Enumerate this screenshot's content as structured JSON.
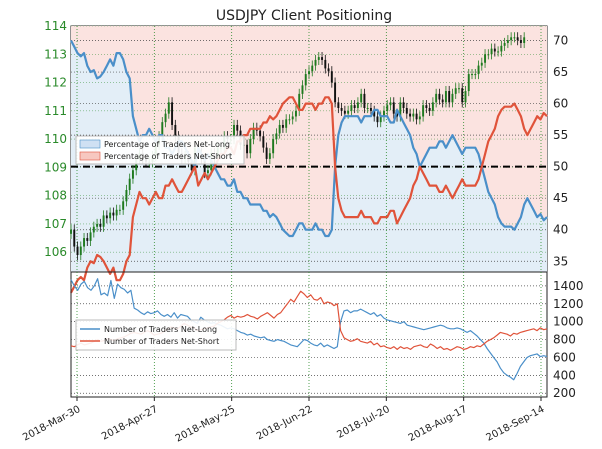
{
  "chart_data": [
    {
      "type": "candlestick+area",
      "title": "USDJPY Client Positioning",
      "price_ticks": [
        106,
        107,
        108,
        109,
        110,
        111,
        112,
        113,
        114
      ],
      "pct_ticks": [
        35,
        40,
        45,
        50,
        55,
        60,
        65,
        70
      ],
      "price_range": [
        105.3,
        114.0
      ],
      "pct_range": [
        33.3,
        72.3
      ],
      "grid": true,
      "legend": "left",
      "series": [
        {
          "name": "Percentage of Traders Net-Long",
          "color": "#4a8fc9",
          "values": [
            70,
            69,
            68,
            67.5,
            68,
            66,
            65,
            65.3,
            64,
            64.3,
            65,
            66,
            67,
            66,
            68,
            68,
            67,
            65,
            64,
            58,
            56,
            54,
            55,
            55,
            56,
            55,
            54,
            55,
            55,
            53,
            53,
            52,
            53,
            54,
            54,
            53,
            52,
            51,
            50,
            53,
            52,
            51,
            52,
            51,
            50,
            49,
            48,
            48,
            47,
            47,
            48,
            46,
            46,
            45,
            45,
            44,
            44,
            44,
            44,
            43,
            43,
            42,
            42.5,
            42,
            41,
            40,
            39.5,
            39,
            39,
            40,
            41,
            41,
            40,
            40,
            40,
            41,
            40,
            40,
            39,
            39,
            40,
            50,
            55,
            57,
            58,
            58,
            58,
            58,
            58,
            57,
            58,
            58,
            58,
            59,
            59,
            58,
            58,
            58,
            57,
            57,
            59,
            58,
            57,
            56,
            55,
            53,
            52,
            50,
            51,
            52,
            53,
            53,
            53,
            54,
            54,
            53,
            54,
            55,
            54,
            53,
            52,
            53,
            53,
            53,
            53,
            52,
            50,
            48,
            46,
            45,
            44,
            42,
            41,
            40.5,
            40.5,
            40.5,
            40,
            41,
            42,
            44,
            45,
            44,
            43,
            42,
            42.5,
            41.5,
            42
          ]
        },
        {
          "name": "Percentage of Traders Net-Short",
          "color": "#e0533a",
          "values": [
            30,
            31,
            32,
            32.5,
            32,
            34,
            35,
            34.7,
            36,
            35.7,
            35,
            34,
            33,
            34,
            32,
            32,
            33,
            35,
            36,
            42,
            44,
            46,
            45,
            45,
            44,
            45,
            46,
            45,
            45,
            47,
            47,
            48,
            47,
            46,
            46,
            47,
            48,
            49,
            50,
            47,
            48,
            49,
            48,
            49,
            50,
            51,
            52,
            52,
            53,
            53,
            52,
            54,
            54,
            55,
            55,
            56,
            56,
            56,
            56,
            57,
            57,
            58,
            57.5,
            58,
            59,
            60,
            60.5,
            61,
            61,
            60,
            59,
            59,
            60,
            60,
            60,
            59,
            60,
            60,
            61,
            61,
            60,
            50,
            45,
            43,
            42,
            42,
            42,
            42,
            42,
            43,
            42,
            42,
            42,
            41,
            41,
            42,
            42,
            42,
            43,
            43,
            41,
            42,
            43,
            44,
            45,
            47,
            48,
            50,
            49,
            48,
            47,
            47,
            47,
            46,
            46,
            47,
            46,
            45,
            46,
            47,
            48,
            47,
            47,
            47,
            47,
            48,
            50,
            52,
            54,
            55,
            56,
            58,
            59,
            59.5,
            59.5,
            59.5,
            60,
            59,
            58,
            56,
            55,
            56,
            57,
            58,
            57.5,
            58.5,
            58
          ]
        },
        {
          "name": "USDJPY",
          "values": [
            106.8,
            106.2,
            105.9,
            106.2,
            106.5,
            106.4,
            106.7,
            106.9,
            107,
            106.9,
            107.3,
            107.2,
            107.4,
            107.3,
            107.5,
            107.5,
            107.8,
            108.2,
            108.6,
            108.9,
            109.3,
            109.5,
            109.3,
            109.2,
            109.2,
            109.4,
            109.8,
            110.1,
            110.6,
            110.9,
            111.3,
            110.5,
            110.1,
            109.5,
            109.3,
            109.4,
            109.2,
            108.9,
            109.7,
            109.5,
            109.3,
            108.8,
            108.9,
            109.5,
            109.3,
            109.7,
            109.7,
            110.1,
            110,
            110,
            110.5,
            110.3,
            109.8,
            109.8,
            109.5,
            110,
            110.4,
            110.3,
            110.1,
            109.7,
            109.3,
            109.5,
            110,
            110.2,
            110.5,
            110.4,
            110.7,
            110.7,
            110.8,
            111,
            111.6,
            111.9,
            112.3,
            112.4,
            112.6,
            112.8,
            112.9,
            112.8,
            112.5,
            112.4,
            112,
            111.3,
            111.1,
            111,
            110.9,
            111,
            111.2,
            111.1,
            111.3,
            111.6,
            111.1,
            111.1,
            111,
            110.8,
            110.6,
            110.8,
            111,
            111.2,
            111.3,
            110.9,
            110.8,
            111.3,
            111.1,
            110.9,
            110.8,
            110.9,
            110.7,
            110.8,
            111.2,
            111.1,
            111,
            111.3,
            111.6,
            111.4,
            111.3,
            111.7,
            111.3,
            111.6,
            111.8,
            111.8,
            111.3,
            111.7,
            112.3,
            112.3,
            112.3,
            112.6,
            112.7,
            113,
            113,
            113.2,
            113.1,
            113.1,
            113.3,
            113.4,
            113.5,
            113.6,
            113.6,
            113.5,
            113.4,
            113.6
          ]
        }
      ]
    },
    {
      "type": "line",
      "y_ticks": [
        200,
        400,
        600,
        800,
        1000,
        1200,
        1400
      ],
      "ylim": [
        158,
        1555
      ],
      "x_ticks": [
        "2018-Mar-30",
        "2018-Apr-27",
        "2018-May-25",
        "2018-Jun-22",
        "2018-Jul-20",
        "2018-Aug-17",
        "2018-Sep-14"
      ],
      "legend": "left",
      "series": [
        {
          "name": "Number of Traders Net-Long",
          "color": "#4a8fc9",
          "values": [
            1470,
            1400,
            1350,
            1420,
            1450,
            1380,
            1350,
            1400,
            1480,
            1300,
            1320,
            1290,
            1460,
            1260,
            1420,
            1380,
            1360,
            1320,
            1350,
            1150,
            1130,
            1100,
            1080,
            1110,
            1090,
            1100,
            1120,
            1080,
            1060,
            1080,
            1050,
            1100,
            1040,
            1080,
            1070,
            1060,
            1020,
            1000,
            980,
            1050,
            1020,
            1000,
            980,
            990,
            970,
            960,
            940,
            920,
            930,
            920,
            900,
            880,
            870,
            850,
            860,
            840,
            830,
            820,
            830,
            800,
            790,
            780,
            800,
            790,
            780,
            760,
            740,
            730,
            720,
            760,
            800,
            790,
            760,
            740,
            730,
            760,
            720,
            740,
            720,
            700,
            720,
            1000,
            1120,
            1130,
            1100,
            1120,
            1120,
            1140,
            1120,
            1100,
            1080,
            1100,
            1060,
            1080,
            1040,
            1020,
            1010,
            1000,
            990,
            980,
            1000,
            960,
            950,
            940,
            930,
            920,
            910,
            920,
            930,
            940,
            950,
            960,
            950,
            930,
            920,
            920,
            930,
            920,
            900,
            880,
            900,
            870,
            840,
            800,
            760,
            700,
            650,
            600,
            550,
            480,
            430,
            400,
            380,
            350,
            420,
            500,
            550,
            600,
            620,
            630,
            640,
            610,
            620,
            610
          ]
        },
        {
          "name": "Number of Traders Net-Short",
          "color": "#e0533a",
          "values": [
            730,
            720,
            740,
            760,
            740,
            750,
            760,
            780,
            800,
            780,
            790,
            810,
            800,
            790,
            810,
            820,
            830,
            850,
            870,
            880,
            870,
            860,
            880,
            900,
            880,
            850,
            860,
            870,
            890,
            920,
            940,
            930,
            920,
            950,
            980,
            960,
            940,
            930,
            900,
            910,
            920,
            930,
            940,
            950,
            980,
            1000,
            1020,
            1050,
            1070,
            1040,
            1060,
            1050,
            1060,
            1080,
            1060,
            1050,
            1030,
            1060,
            1080,
            1100,
            1070,
            1040,
            1080,
            1100,
            1150,
            1200,
            1250,
            1220,
            1280,
            1340,
            1310,
            1270,
            1300,
            1250,
            1240,
            1270,
            1200,
            1220,
            1210,
            1180,
            1200,
            900,
            820,
            800,
            780,
            790,
            810,
            780,
            770,
            760,
            780,
            740,
            760,
            720,
            730,
            710,
            700,
            720,
            690,
            720,
            700,
            710,
            690,
            720,
            730,
            740,
            720,
            710,
            750,
            730,
            700,
            720,
            690,
            700,
            680,
            700,
            720,
            710,
            690,
            700,
            720,
            710,
            730,
            720,
            750,
            780,
            800,
            820,
            850,
            880,
            870,
            860,
            840,
            870,
            860,
            880,
            890,
            900,
            910,
            920,
            900,
            930,
            910,
            920
          ]
        }
      ]
    }
  ]
}
